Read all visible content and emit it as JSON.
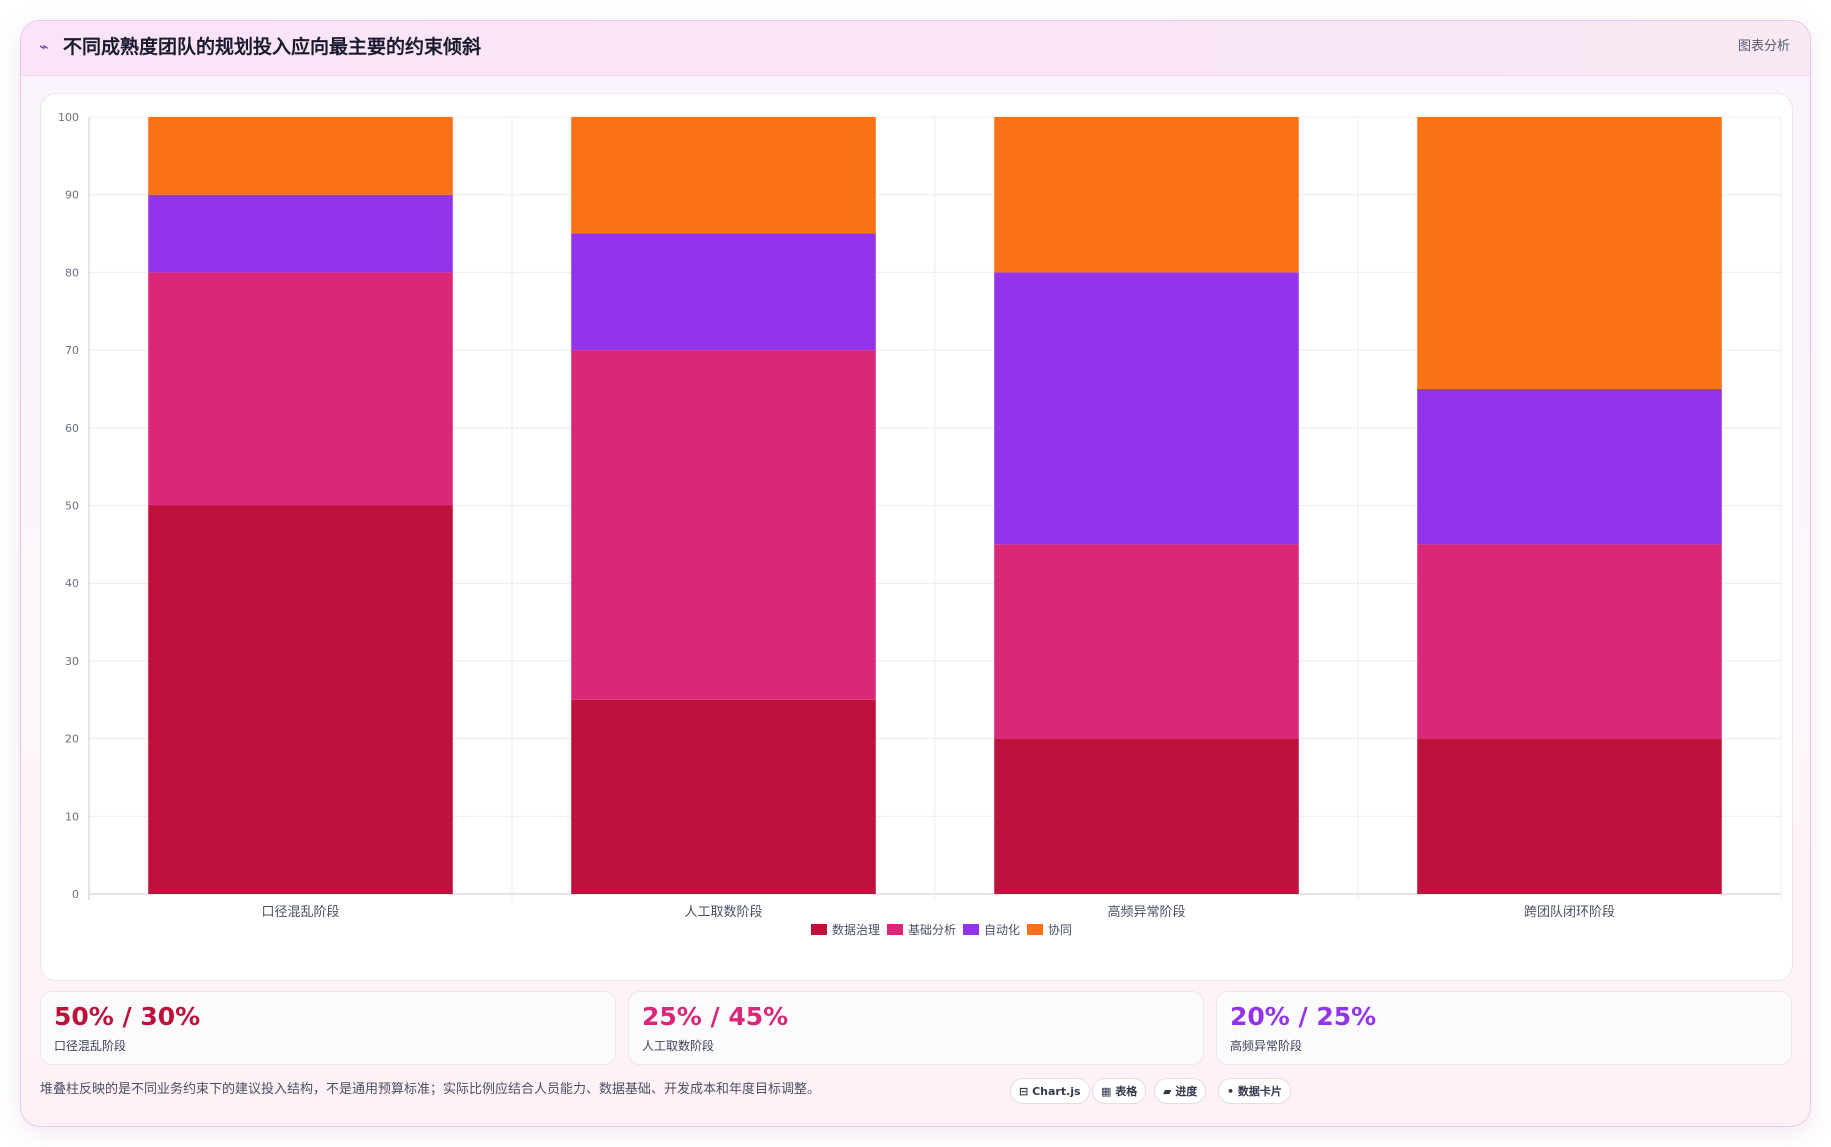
{
  "header": {
    "icon": "sparkline-icon",
    "title": "不同成熟度团队的规划投入应向最主要的约束倾斜",
    "link_label": "图表分析"
  },
  "chart_data": {
    "type": "bar",
    "stacked": true,
    "categories": [
      "口径混乱阶段",
      "人工取数阶段",
      "高频异常阶段",
      "跨团队闭环阶段"
    ],
    "series": [
      {
        "name": "数据治理",
        "color": "#be123c",
        "values": [
          50,
          25,
          20,
          20
        ]
      },
      {
        "name": "基础分析",
        "color": "#db2777",
        "values": [
          30,
          45,
          25,
          25
        ]
      },
      {
        "name": "自动化",
        "color": "#9333ea",
        "values": [
          10,
          15,
          35,
          20
        ]
      },
      {
        "name": "协同",
        "color": "#f97316",
        "values": [
          10,
          15,
          20,
          35
        ]
      }
    ],
    "ylim": [
      0,
      100
    ],
    "yticks": [
      "0",
      "10",
      "20",
      "30",
      "40",
      "50",
      "60",
      "70",
      "80",
      "90",
      "100"
    ],
    "grid": true,
    "legend": "bottom"
  },
  "stats": [
    {
      "value": "50% / 30%",
      "label": "口径混乱阶段",
      "color": "#be123c"
    },
    {
      "value": "25% / 45%",
      "label": "人工取数阶段",
      "color": "#db2777"
    },
    {
      "value": "20% / 25%",
      "label": "高频异常阶段",
      "color": "#9333ea"
    }
  ],
  "footnote": "堆叠柱反映的是不同业务约束下的建议投入结构，不是通用预算标准；实际比例应结合人员能力、数据基础、开发成本和年度目标调整。",
  "pills": [
    {
      "icon": "chart-icon",
      "glyph": "⊟",
      "label": "Chart.js"
    },
    {
      "icon": "table-icon",
      "glyph": "▦",
      "label": "表格"
    },
    {
      "icon": "progress-icon",
      "glyph": "▰",
      "label": "进度"
    },
    {
      "icon": "card-icon",
      "glyph": "•",
      "label": "数据卡片"
    }
  ]
}
